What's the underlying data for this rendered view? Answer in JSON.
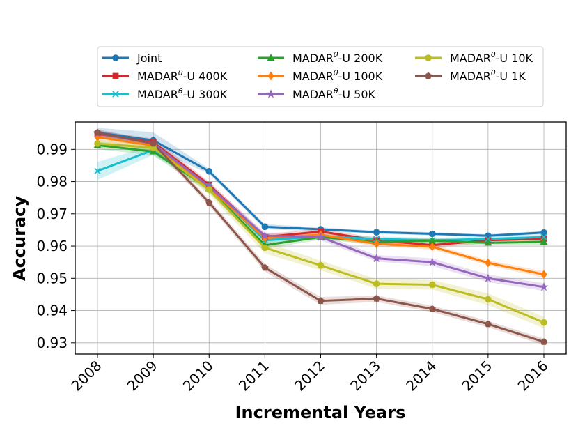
{
  "chart_data": {
    "type": "line",
    "title": "",
    "xlabel": "Incremental Years",
    "ylabel": "Accuracy",
    "categories": [
      "2008",
      "2009",
      "2010",
      "2011",
      "2012",
      "2013",
      "2014",
      "2015",
      "2016"
    ],
    "ylim": [
      0.9265,
      0.9985
    ],
    "yticks": [
      0.93,
      0.94,
      0.95,
      0.96,
      0.97,
      0.98,
      0.99
    ],
    "ytick_labels": [
      "0.93",
      "0.94",
      "0.95",
      "0.96",
      "0.97",
      "0.98",
      "0.99"
    ],
    "grid": true,
    "legend_position": "top",
    "legend_columns": 3,
    "series": [
      {
        "name": "Joint",
        "name_base": "Joint",
        "name_sup": "",
        "name_rest": "",
        "color": "#1f77b4",
        "marker": "circle",
        "values": [
          0.9952,
          0.9928,
          0.9832,
          0.966,
          0.9652,
          0.9643,
          0.9638,
          0.9632,
          0.9642
        ],
        "band": [
          0.0015,
          0.0025,
          0.0008,
          0.0008,
          0.0006,
          0.0005,
          0.0005,
          0.0005,
          0.0005
        ]
      },
      {
        "name": "MADARθ-U 400K",
        "name_base": "MADAR",
        "name_sup": "θ",
        "name_rest": "-U 400K",
        "color": "#d62728",
        "marker": "square",
        "values": [
          0.9948,
          0.9922,
          0.979,
          0.9628,
          0.9645,
          0.9618,
          0.9603,
          0.9618,
          0.9623
        ],
        "band": [
          0.001,
          0.0012,
          0.001,
          0.001,
          0.0008,
          0.0008,
          0.0008,
          0.0008,
          0.0008
        ]
      },
      {
        "name": "MADARθ-U 300K",
        "name_base": "MADAR",
        "name_sup": "θ",
        "name_rest": "-U 300K",
        "color": "#17becf",
        "marker": "x",
        "values": [
          0.9833,
          0.9898,
          0.9785,
          0.9618,
          0.963,
          0.9622,
          0.9618,
          0.9622,
          0.9628
        ],
        "band": [
          0.0028,
          0.0015,
          0.0012,
          0.001,
          0.0008,
          0.0008,
          0.0008,
          0.0008,
          0.0008
        ]
      },
      {
        "name": "MADARθ-U 200K",
        "name_base": "MADAR",
        "name_sup": "θ",
        "name_rest": "-U 200K",
        "color": "#2ca02c",
        "marker": "triangle",
        "values": [
          0.9913,
          0.9893,
          0.9778,
          0.9603,
          0.9628,
          0.9613,
          0.9617,
          0.961,
          0.9613
        ],
        "band": [
          0.0012,
          0.0012,
          0.0012,
          0.0012,
          0.0008,
          0.0008,
          0.0008,
          0.0008,
          0.0008
        ]
      },
      {
        "name": "MADARθ-U 100K",
        "name_base": "MADAR",
        "name_sup": "θ",
        "name_rest": "-U 100K",
        "color": "#ff7f0e",
        "marker": "diamond",
        "values": [
          0.9938,
          0.9912,
          0.978,
          0.9625,
          0.9635,
          0.9607,
          0.9598,
          0.9548,
          0.9512
        ],
        "band": [
          0.0012,
          0.0012,
          0.0012,
          0.001,
          0.0008,
          0.0008,
          0.0008,
          0.0008,
          0.001
        ]
      },
      {
        "name": "MADARθ-U 50K",
        "name_base": "MADAR",
        "name_sup": "θ",
        "name_rest": "-U 50K",
        "color": "#9467bd",
        "marker": "star",
        "values": [
          0.995,
          0.9918,
          0.9785,
          0.9632,
          0.9628,
          0.9562,
          0.955,
          0.95,
          0.9473
        ],
        "band": [
          0.001,
          0.001,
          0.0012,
          0.001,
          0.001,
          0.001,
          0.0012,
          0.0012,
          0.0012
        ]
      },
      {
        "name": "MADARθ-U 10K",
        "name_base": "MADAR",
        "name_sup": "θ",
        "name_rest": "-U 10K",
        "color": "#bcbd22",
        "marker": "circle",
        "values": [
          0.9918,
          0.9905,
          0.9775,
          0.9595,
          0.954,
          0.9483,
          0.948,
          0.9435,
          0.9363
        ],
        "band": [
          0.0012,
          0.0012,
          0.0015,
          0.0018,
          0.0015,
          0.0015,
          0.0015,
          0.0018,
          0.0018
        ]
      },
      {
        "name": "MADARθ-U 1K",
        "name_base": "MADAR",
        "name_sup": "θ",
        "name_rest": "-U 1K",
        "color": "#8c564b",
        "marker": "pentagon",
        "values": [
          0.9952,
          0.9918,
          0.9735,
          0.9533,
          0.943,
          0.9437,
          0.9405,
          0.9358,
          0.9303
        ],
        "band": [
          0.001,
          0.001,
          0.001,
          0.0012,
          0.0012,
          0.001,
          0.001,
          0.001,
          0.001
        ]
      }
    ]
  }
}
